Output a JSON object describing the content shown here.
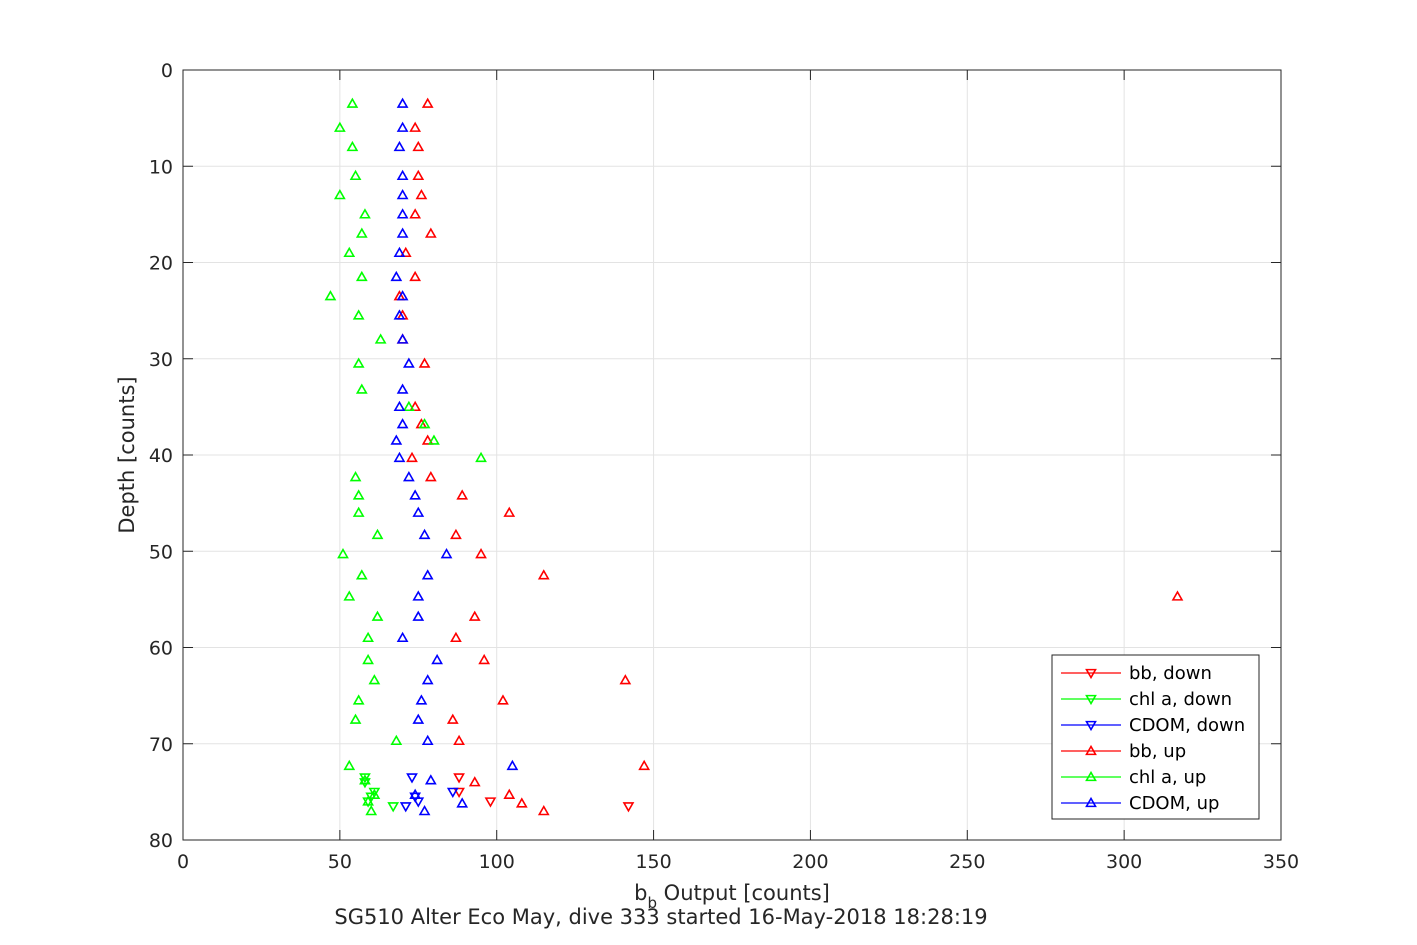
{
  "chart_data": {
    "type": "scatter",
    "xlabel_main": "b",
    "xlabel_sub": "b",
    "xlabel_rest": " Output [counts]",
    "ylabel": "Depth [counts]",
    "caption": "SG510 Alter Eco May, dive 333 started 16-May-2018 18:28:19",
    "xlim": [
      0,
      350
    ],
    "ylim": [
      0,
      80
    ],
    "y_reversed": true,
    "grid": true,
    "legend_position": "bottom-right",
    "xticks": [
      "0",
      "50",
      "100",
      "150",
      "200",
      "250",
      "300",
      "350"
    ],
    "yticks": [
      "0",
      "10",
      "20",
      "30",
      "40",
      "50",
      "60",
      "70",
      "80"
    ],
    "series": [
      {
        "name": "bb, down",
        "color": "#ff0000",
        "marker": "down",
        "points": [
          [
            88,
            73.5
          ],
          [
            88,
            75
          ],
          [
            98,
            76
          ],
          [
            142,
            76.5
          ]
        ]
      },
      {
        "name": "chl a, down",
        "color": "#00ff00",
        "marker": "down",
        "points": [
          [
            58,
            73.5
          ],
          [
            58,
            74
          ],
          [
            61,
            75
          ],
          [
            60,
            75.5
          ],
          [
            59,
            76
          ],
          [
            67,
            76.5
          ]
        ]
      },
      {
        "name": "CDOM, down",
        "color": "#0000ff",
        "marker": "down",
        "points": [
          [
            73,
            73.5
          ],
          [
            86,
            75
          ],
          [
            74,
            75.5
          ],
          [
            75,
            76
          ],
          [
            71,
            76.5
          ]
        ]
      },
      {
        "name": "bb, up",
        "color": "#ff0000",
        "marker": "up",
        "points": [
          [
            78,
            3.5
          ],
          [
            74,
            6
          ],
          [
            75,
            8
          ],
          [
            75,
            11
          ],
          [
            76,
            13
          ],
          [
            74,
            15
          ],
          [
            79,
            17
          ],
          [
            71,
            19
          ],
          [
            74,
            21.5
          ],
          [
            69,
            23.5
          ],
          [
            70,
            25.5
          ],
          [
            70,
            28
          ],
          [
            77,
            30.5
          ],
          [
            74,
            35
          ],
          [
            76,
            36.8
          ],
          [
            78,
            38.5
          ],
          [
            73,
            40.3
          ],
          [
            79,
            42.3
          ],
          [
            89,
            44.2
          ],
          [
            104,
            46
          ],
          [
            87,
            48.3
          ],
          [
            95,
            50.3
          ],
          [
            115,
            52.5
          ],
          [
            317,
            54.7
          ],
          [
            93,
            56.8
          ],
          [
            87,
            59
          ],
          [
            96,
            61.3
          ],
          [
            141,
            63.4
          ],
          [
            102,
            65.5
          ],
          [
            86,
            67.5
          ],
          [
            88,
            69.7
          ],
          [
            147,
            72.3
          ],
          [
            93,
            74
          ],
          [
            104,
            75.3
          ],
          [
            108,
            76.2
          ],
          [
            115,
            77
          ]
        ]
      },
      {
        "name": "chl a, up",
        "color": "#00ff00",
        "marker": "up",
        "points": [
          [
            54,
            3.5
          ],
          [
            50,
            6
          ],
          [
            54,
            8
          ],
          [
            55,
            11
          ],
          [
            50,
            13
          ],
          [
            58,
            15
          ],
          [
            57,
            17
          ],
          [
            53,
            19
          ],
          [
            57,
            21.5
          ],
          [
            47,
            23.5
          ],
          [
            56,
            25.5
          ],
          [
            63,
            28
          ],
          [
            56,
            30.5
          ],
          [
            57,
            33.2
          ],
          [
            72,
            35
          ],
          [
            77,
            36.8
          ],
          [
            80,
            38.5
          ],
          [
            95,
            40.3
          ],
          [
            55,
            42.3
          ],
          [
            56,
            44.2
          ],
          [
            56,
            46
          ],
          [
            62,
            48.3
          ],
          [
            51,
            50.3
          ],
          [
            57,
            52.5
          ],
          [
            53,
            54.7
          ],
          [
            62,
            56.8
          ],
          [
            59,
            59
          ],
          [
            59,
            61.3
          ],
          [
            61,
            63.4
          ],
          [
            56,
            65.5
          ],
          [
            55,
            67.5
          ],
          [
            68,
            69.7
          ],
          [
            53,
            72.3
          ],
          [
            58,
            73.8
          ],
          [
            61,
            75.3
          ],
          [
            59,
            76
          ],
          [
            60,
            77
          ]
        ]
      },
      {
        "name": "CDOM, up",
        "color": "#0000ff",
        "marker": "up",
        "points": [
          [
            70,
            3.5
          ],
          [
            70,
            6
          ],
          [
            69,
            8
          ],
          [
            70,
            11
          ],
          [
            70,
            13
          ],
          [
            70,
            15
          ],
          [
            70,
            17
          ],
          [
            69,
            19
          ],
          [
            68,
            21.5
          ],
          [
            70,
            23.5
          ],
          [
            69,
            25.5
          ],
          [
            70,
            28
          ],
          [
            72,
            30.5
          ],
          [
            70,
            33.2
          ],
          [
            69,
            35
          ],
          [
            70,
            36.8
          ],
          [
            68,
            38.5
          ],
          [
            69,
            40.3
          ],
          [
            72,
            42.3
          ],
          [
            74,
            44.2
          ],
          [
            75,
            46
          ],
          [
            77,
            48.3
          ],
          [
            84,
            50.3
          ],
          [
            78,
            52.5
          ],
          [
            75,
            54.7
          ],
          [
            75,
            56.8
          ],
          [
            70,
            59
          ],
          [
            81,
            61.3
          ],
          [
            78,
            63.4
          ],
          [
            76,
            65.5
          ],
          [
            75,
            67.5
          ],
          [
            78,
            69.7
          ],
          [
            105,
            72.3
          ],
          [
            79,
            73.8
          ],
          [
            74,
            75.3
          ],
          [
            89,
            76.2
          ],
          [
            77,
            77
          ]
        ]
      }
    ]
  }
}
